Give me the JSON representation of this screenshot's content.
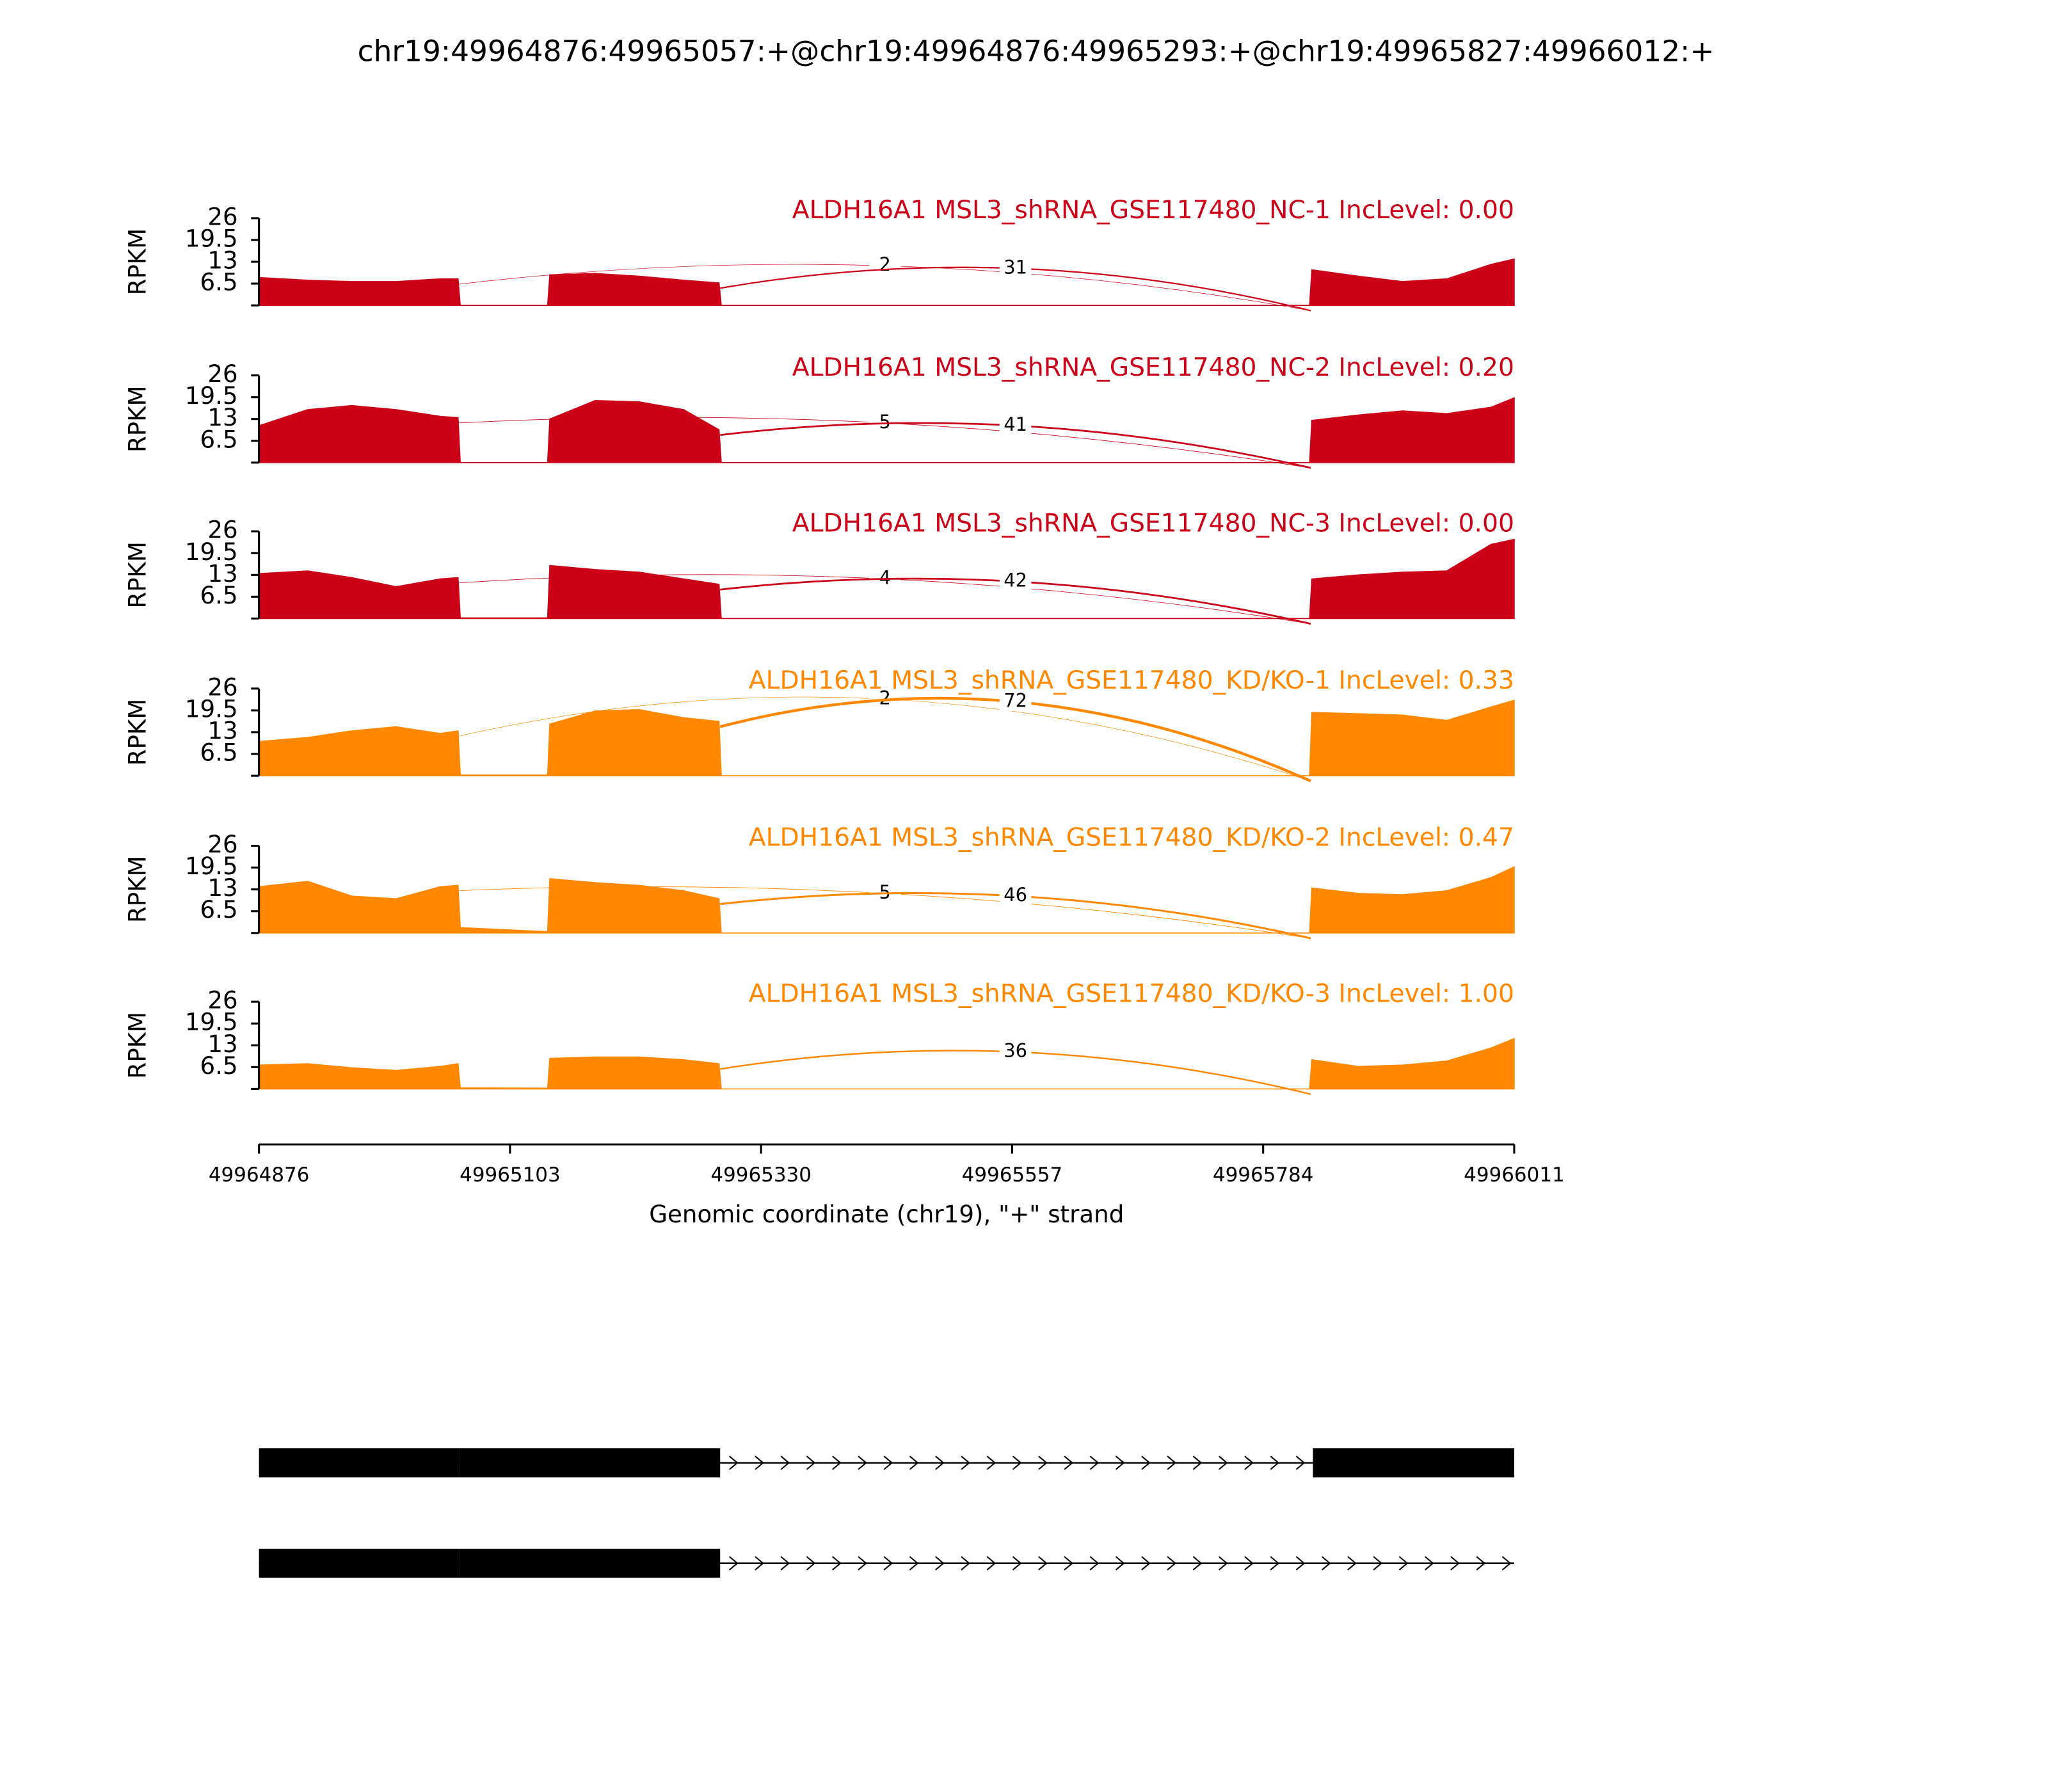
{
  "title": "chr19:49964876:49965057:+@chr19:49964876:49965293:+@chr19:49965827:49966012:+",
  "x_axis": {
    "label": "Genomic coordinate (chr19), \"+\" strand",
    "xlim": [
      49964876,
      49966011
    ],
    "xticks": [
      49964876,
      49965103,
      49965330,
      49965557,
      49965784,
      49966011
    ]
  },
  "chart_data": [
    {
      "type": "area",
      "title": "ALDH16A1 MSL3_shRNA_GSE117480_NC-1 IncLevel: 0.00",
      "ylabel": "RPKM",
      "color": "#cc0017",
      "ylim": [
        0,
        26
      ],
      "yticks": [
        6.5,
        13,
        19.5,
        26
      ],
      "x": [
        49964876,
        49964920,
        49964960,
        49965000,
        49965040,
        49965056,
        49965058,
        49965137,
        49965139,
        49965180,
        49965220,
        49965260,
        49965292,
        49965294,
        49965826,
        49965828,
        49965870,
        49965910,
        49965950,
        49965990,
        49966011
      ],
      "values": [
        8.3,
        7.5,
        7.1,
        7.1,
        7.9,
        7.9,
        0,
        0,
        9.1,
        9.5,
        8.7,
        7.5,
        6.7,
        0,
        0,
        10.6,
        8.7,
        7.1,
        7.9,
        12.2,
        13.8
      ],
      "junctions": [
        {
          "start": 49965057,
          "end": 49965827,
          "count": 2
        },
        {
          "start": 49965293,
          "end": 49965827,
          "count": 31
        }
      ]
    },
    {
      "type": "area",
      "title": "ALDH16A1 MSL3_shRNA_GSE117480_NC-2 IncLevel: 0.20",
      "ylabel": "RPKM",
      "color": "#cc0017",
      "ylim": [
        0,
        26
      ],
      "yticks": [
        6.5,
        13,
        19.5,
        26
      ],
      "x": [
        49964876,
        49964920,
        49964960,
        49965000,
        49965040,
        49965056,
        49965058,
        49965137,
        49965139,
        49965180,
        49965220,
        49965260,
        49965292,
        49965294,
        49965826,
        49965828,
        49965870,
        49965910,
        49965950,
        49965990,
        49966011
      ],
      "values": [
        11,
        15.8,
        17,
        15.8,
        13.8,
        13.4,
        0,
        0,
        13,
        18.5,
        18.1,
        15.8,
        9.8,
        0,
        0,
        12.6,
        14.2,
        15.4,
        14.6,
        16.5,
        19.3
      ],
      "junctions": [
        {
          "start": 49965057,
          "end": 49965827,
          "count": 5
        },
        {
          "start": 49965293,
          "end": 49965827,
          "count": 41
        }
      ]
    },
    {
      "type": "area",
      "title": "ALDH16A1 MSL3_shRNA_GSE117480_NC-3 IncLevel: 0.00",
      "ylabel": "RPKM",
      "color": "#cc0017",
      "ylim": [
        0,
        26
      ],
      "yticks": [
        6.5,
        13,
        19.5,
        26
      ],
      "x": [
        49964876,
        49964920,
        49964960,
        49965000,
        49965040,
        49965056,
        49965058,
        49965137,
        49965139,
        49965180,
        49965220,
        49965260,
        49965292,
        49965294,
        49965826,
        49965828,
        49965870,
        49965910,
        49965950,
        49965990,
        49966011
      ],
      "values": [
        13.4,
        14.2,
        12.2,
        9.5,
        11.8,
        12.2,
        0.2,
        0.2,
        15.8,
        14.6,
        13.8,
        11.8,
        10.2,
        0,
        0,
        11.8,
        13,
        13.8,
        14.2,
        22.1,
        23.6
      ],
      "junctions": [
        {
          "start": 49965057,
          "end": 49965827,
          "count": 4
        },
        {
          "start": 49965293,
          "end": 49965827,
          "count": 42
        }
      ]
    },
    {
      "type": "area",
      "title": "ALDH16A1 MSL3_shRNA_GSE117480_KD/KO-1 IncLevel: 0.33",
      "ylabel": "RPKM",
      "color": "#ff8800",
      "ylim": [
        0,
        26
      ],
      "yticks": [
        6.5,
        13,
        19.5,
        26
      ],
      "x": [
        49964876,
        49964920,
        49964960,
        49965000,
        49965040,
        49965056,
        49965058,
        49965137,
        49965139,
        49965180,
        49965220,
        49965260,
        49965292,
        49965294,
        49965826,
        49965828,
        49965870,
        49965910,
        49965950,
        49965990,
        49966011
      ],
      "values": [
        10.2,
        11.4,
        13.4,
        14.6,
        12.6,
        13.4,
        0.2,
        0.2,
        15.4,
        19.3,
        19.7,
        17.3,
        16.2,
        0,
        0,
        18.9,
        18.5,
        18.1,
        16.5,
        20.5,
        22.5
      ],
      "junctions": [
        {
          "start": 49965057,
          "end": 49965827,
          "count": 2
        },
        {
          "start": 49965293,
          "end": 49965827,
          "count": 72
        }
      ]
    },
    {
      "type": "area",
      "title": "ALDH16A1 MSL3_shRNA_GSE117480_KD/KO-2 IncLevel: 0.47",
      "ylabel": "RPKM",
      "color": "#ff8800",
      "ylim": [
        0,
        26
      ],
      "yticks": [
        6.5,
        13,
        19.5,
        26
      ],
      "x": [
        49964876,
        49964920,
        49964960,
        49965000,
        49965040,
        49965056,
        49965058,
        49965137,
        49965139,
        49965180,
        49965220,
        49965260,
        49965292,
        49965294,
        49965826,
        49965828,
        49965870,
        49965910,
        49965950,
        49965990,
        49966011
      ],
      "values": [
        13.8,
        15.4,
        11,
        10.2,
        13.8,
        14.2,
        1.6,
        0.4,
        16.2,
        15,
        14.2,
        12.6,
        10.2,
        0,
        0,
        13.4,
        11.8,
        11.4,
        12.6,
        16.5,
        19.7
      ],
      "junctions": [
        {
          "start": 49965057,
          "end": 49965827,
          "count": 5
        },
        {
          "start": 49965293,
          "end": 49965827,
          "count": 46
        }
      ]
    },
    {
      "type": "area",
      "title": "ALDH16A1 MSL3_shRNA_GSE117480_KD/KO-3 IncLevel: 1.00",
      "ylabel": "RPKM",
      "color": "#ff8800",
      "ylim": [
        0,
        26
      ],
      "yticks": [
        6.5,
        13,
        19.5,
        26
      ],
      "x": [
        49964876,
        49964920,
        49964960,
        49965000,
        49965040,
        49965056,
        49965058,
        49965137,
        49965139,
        49965180,
        49965220,
        49965260,
        49965292,
        49965294,
        49965826,
        49965828,
        49965870,
        49965910,
        49965950,
        49965990,
        49966011
      ],
      "values": [
        7.1,
        7.5,
        6.3,
        5.5,
        6.7,
        7.5,
        0.3,
        0.2,
        9.1,
        9.5,
        9.5,
        8.7,
        7.5,
        0,
        0,
        8.7,
        6.7,
        7.1,
        8.3,
        12.2,
        15
      ],
      "junctions": [
        {
          "start": 49965293,
          "end": 49965827,
          "count": 36
        }
      ]
    }
  ],
  "gene_model": [
    {
      "start": 49964876,
      "end": 49966011,
      "exons": [
        [
          49964876,
          49965057
        ],
        [
          49965057,
          49965293
        ],
        [
          49965829,
          49966011
        ]
      ]
    },
    {
      "start": 49964876,
      "end": 49966011,
      "exons": [
        [
          49964876,
          49965057
        ],
        [
          49965057,
          49965293
        ]
      ]
    }
  ]
}
